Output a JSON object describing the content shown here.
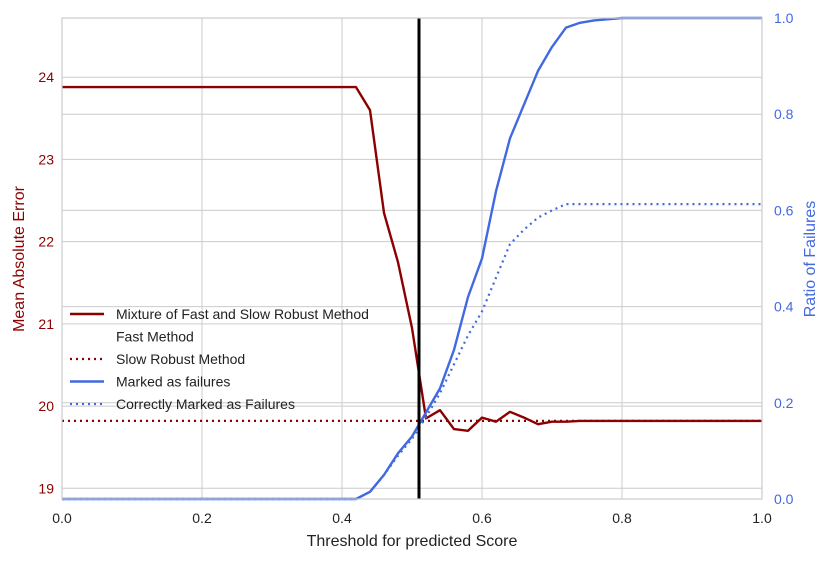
{
  "chart_data": {
    "type": "line",
    "title": "",
    "xlabel": "Threshold for predicted Score",
    "ylabel_left": "Mean Absolute Error",
    "ylabel_right": "Ratio of Failures",
    "xlim": [
      0.0,
      1.0
    ],
    "ylim_left": [
      18.87,
      24.72
    ],
    "ylim_right": [
      0.0,
      1.0
    ],
    "x_ticks": [
      "0.0",
      "0.2",
      "0.4",
      "0.6",
      "0.8",
      "1.0"
    ],
    "left_ticks": [
      "19",
      "20",
      "21",
      "22",
      "23",
      "24"
    ],
    "right_ticks": [
      "0.0",
      "0.2",
      "0.4",
      "0.6",
      "0.8",
      "1.0"
    ],
    "grid": true,
    "legend_position": "center-left",
    "vline_x": 0.51,
    "colors": {
      "left_axis": "#8b0000",
      "right_axis": "#4169e1",
      "vline": "#000000",
      "grid": "#cccccc"
    },
    "series": [
      {
        "name": "Mixture of Fast and Slow Robust Method",
        "axis": "left",
        "color": "#8b0000",
        "dash": "solid",
        "x": [
          0.0,
          0.42,
          0.44,
          0.46,
          0.48,
          0.5,
          0.52,
          0.54,
          0.56,
          0.58,
          0.6,
          0.62,
          0.64,
          0.66,
          0.68,
          0.7,
          0.72,
          0.74,
          0.76,
          0.8,
          1.0
        ],
        "y": [
          23.88,
          23.88,
          23.6,
          22.35,
          21.75,
          20.95,
          19.85,
          19.95,
          19.72,
          19.7,
          19.86,
          19.81,
          19.93,
          19.86,
          19.78,
          19.81,
          19.81,
          19.82,
          19.82,
          19.82,
          19.82
        ]
      },
      {
        "name": "Fast Method",
        "axis": "left",
        "color": "#ffffff",
        "dash": "solid",
        "x": [],
        "y": []
      },
      {
        "name": "Slow Robust Method",
        "axis": "left",
        "color": "#8b0000",
        "dash": "dotted",
        "x": [
          0.0,
          1.0
        ],
        "y": [
          19.82,
          19.82
        ]
      },
      {
        "name": "Marked as failures",
        "axis": "right",
        "color": "#4169e1",
        "dash": "solid",
        "x": [
          0.0,
          0.42,
          0.44,
          0.46,
          0.48,
          0.5,
          0.52,
          0.54,
          0.56,
          0.58,
          0.6,
          0.62,
          0.64,
          0.66,
          0.68,
          0.7,
          0.72,
          0.74,
          0.76,
          0.8,
          1.0
        ],
        "y": [
          0.0,
          0.0,
          0.015,
          0.05,
          0.095,
          0.13,
          0.18,
          0.23,
          0.31,
          0.42,
          0.5,
          0.64,
          0.75,
          0.82,
          0.89,
          0.94,
          0.98,
          0.99,
          0.995,
          1.0,
          1.0
        ]
      },
      {
        "name": "Correctly Marked as Failures",
        "axis": "right",
        "color": "#4169e1",
        "dash": "dotted",
        "x": [
          0.0,
          0.42,
          0.44,
          0.46,
          0.48,
          0.5,
          0.52,
          0.54,
          0.56,
          0.58,
          0.6,
          0.62,
          0.64,
          0.66,
          0.68,
          0.7,
          0.72,
          0.74,
          0.76,
          0.8,
          1.0
        ],
        "y": [
          0.0,
          0.0,
          0.015,
          0.05,
          0.09,
          0.125,
          0.17,
          0.22,
          0.28,
          0.34,
          0.39,
          0.46,
          0.53,
          0.56,
          0.585,
          0.6,
          0.613,
          0.613,
          0.613,
          0.613,
          0.613
        ]
      }
    ]
  }
}
